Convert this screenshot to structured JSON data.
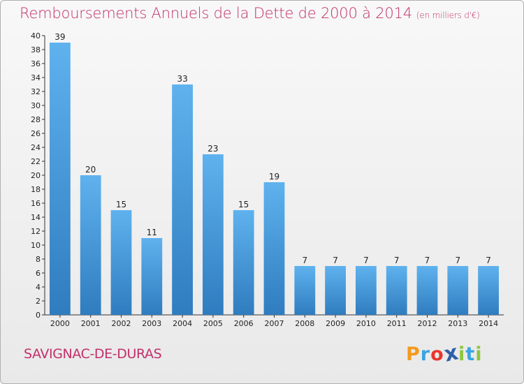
{
  "title": "Remboursements Annuels de la Dette de 2000 à 2014",
  "subtitle": "(en milliers d'€)",
  "commune": "SAVIGNAC-DE-DURAS",
  "logo": {
    "letters": [
      "P",
      "r",
      "o",
      "x",
      "i",
      "t",
      "i"
    ]
  },
  "colors": {
    "title": "#c2306a",
    "bar_top": "#5fb2ee",
    "bar_bottom": "#2f7cbf",
    "logo": [
      "#f39a1e",
      "#3aa3e0",
      "#e8362b",
      "#2f5fa8",
      "#8dc63f",
      "#3aa3e0",
      "#8dc63f"
    ]
  },
  "chart_data": {
    "type": "bar",
    "title": "Remboursements Annuels de la Dette de 2000 à 2014",
    "ylabel": "en milliers d'€",
    "xlabel": "",
    "categories": [
      "2000",
      "2001",
      "2002",
      "2003",
      "2004",
      "2005",
      "2006",
      "2007",
      "2008",
      "2009",
      "2010",
      "2011",
      "2012",
      "2013",
      "2014"
    ],
    "values": [
      39,
      20,
      15,
      11,
      33,
      23,
      15,
      19,
      7,
      7,
      7,
      7,
      7,
      7,
      7
    ],
    "ylim": [
      0,
      40
    ],
    "yticks": [
      0,
      2,
      4,
      6,
      8,
      10,
      12,
      14,
      16,
      18,
      20,
      22,
      24,
      26,
      28,
      30,
      32,
      34,
      36,
      38,
      40
    ],
    "grid": false,
    "data_labels": true
  }
}
